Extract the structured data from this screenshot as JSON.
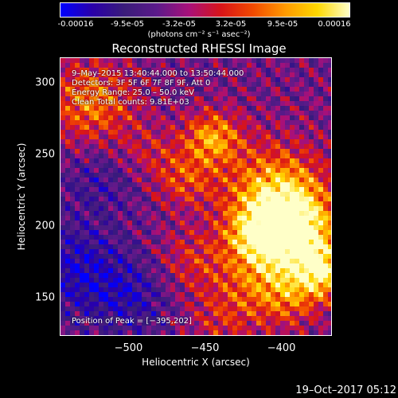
{
  "colorbar": {
    "ticks": [
      "-0.00016",
      "-9.5e-05",
      "-3.2e-05",
      "3.2e-05",
      "9.5e-05",
      "0.00016"
    ],
    "units": "(photons cm⁻² s⁻¹ asec⁻²)",
    "colors": [
      "#0000ff",
      "#2a00a8",
      "#3a1c7a",
      "#5b1a8a",
      "#a8107a",
      "#d81418",
      "#f24a00",
      "#ff9a00",
      "#ffd800",
      "#ffffc8"
    ]
  },
  "chart_data": {
    "type": "heatmap",
    "title": "Reconstructed RHESSI Image",
    "xlabel": "Heliocentric X (arcsec)",
    "ylabel": "Heliocentric Y (arcsec)",
    "xlim": [
      -545,
      -367
    ],
    "ylim": [
      123,
      318
    ],
    "xticks": [
      "−500",
      "−450",
      "−400"
    ],
    "yticks": [
      "300",
      "250",
      "200",
      "150"
    ],
    "xtick_values": [
      -500,
      -450,
      -400
    ],
    "ytick_values": [
      300,
      250,
      200,
      150
    ],
    "clim": [
      -0.00016,
      0.00016
    ],
    "peak": [
      -395,
      202
    ],
    "annotations": {
      "time": "9–May–2015 13:40:44.000 to 13:50:44.000",
      "detectors": "Detectors: 3F 5F 6F 7F 8F 9F, Att 0",
      "energy": "Energy Range: 25.0 – 50.0 keV",
      "clean": "Clean     Total counts: 9.81E+03",
      "peak_label": "Position of Peak = [−395,202]"
    },
    "blobs": [
      {
        "x": -395,
        "y": 202,
        "amp": 1.0,
        "sigma": 20
      },
      {
        "x": -405,
        "y": 225,
        "amp": 0.7,
        "sigma": 24
      },
      {
        "x": -383,
        "y": 178,
        "amp": 0.6,
        "sigma": 18
      },
      {
        "x": -418,
        "y": 192,
        "amp": 0.55,
        "sigma": 14
      },
      {
        "x": -445,
        "y": 262,
        "amp": 0.75,
        "sigma": 13
      },
      {
        "x": -525,
        "y": 287,
        "amp": 0.65,
        "sigma": 20
      },
      {
        "x": -463,
        "y": 233,
        "amp": 0.45,
        "sigma": 14
      },
      {
        "x": -418,
        "y": 160,
        "amp": 0.45,
        "sigma": 18
      },
      {
        "x": -395,
        "y": 148,
        "amp": 0.4,
        "sigma": 15
      },
      {
        "x": -372,
        "y": 165,
        "amp": 0.6,
        "sigma": 12
      },
      {
        "x": -458,
        "y": 175,
        "amp": 0.35,
        "sigma": 16
      },
      {
        "x": -440,
        "y": 133,
        "amp": 0.3,
        "sigma": 16
      },
      {
        "x": -487,
        "y": 253,
        "amp": 0.25,
        "sigma": 14
      },
      {
        "x": -535,
        "y": 170,
        "amp": -0.45,
        "sigma": 22
      },
      {
        "x": -500,
        "y": 148,
        "amp": -0.35,
        "sigma": 20
      },
      {
        "x": -520,
        "y": 230,
        "amp": -0.25,
        "sigma": 18
      }
    ]
  },
  "footer": "19–Oct–2017 05:12"
}
